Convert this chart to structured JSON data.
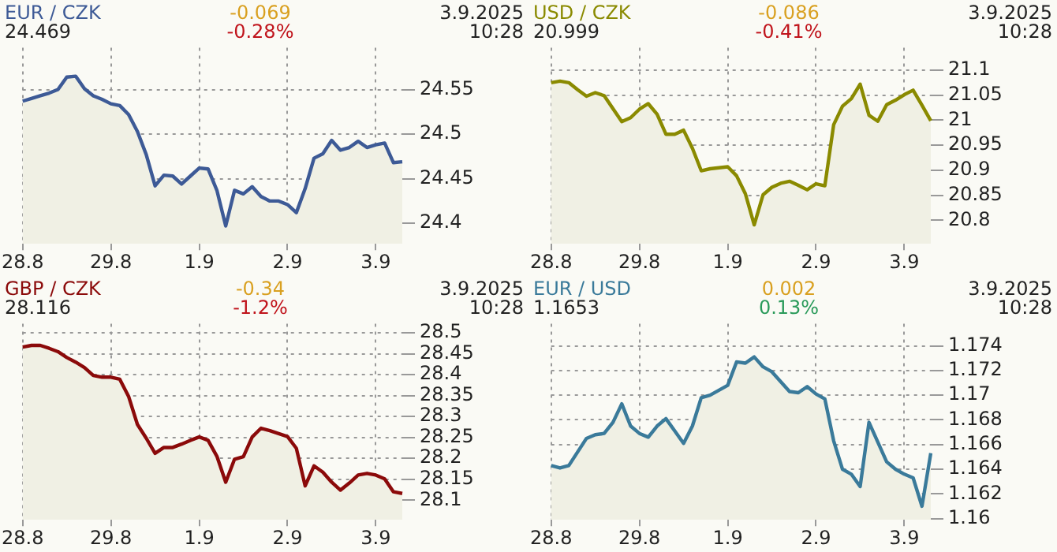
{
  "chart_data": [
    {
      "type": "area",
      "title": "EUR / CZK",
      "subtitle": "24.469",
      "annotations": [
        "-0.069",
        "-0.28%",
        "3.9.2025",
        "10:28"
      ],
      "grid": true,
      "legend": false,
      "categories": [
        "28.8",
        null,
        null,
        null,
        null,
        null,
        null,
        null,
        null,
        null,
        "29.8",
        null,
        null,
        null,
        null,
        null,
        null,
        null,
        null,
        null,
        "1.9",
        null,
        null,
        null,
        null,
        null,
        null,
        null,
        null,
        null,
        "2.9",
        null,
        null,
        null,
        null,
        null,
        null,
        null,
        null,
        null,
        "3.9",
        null,
        null,
        null
      ],
      "ylim": [
        24.377,
        24.597
      ],
      "yticks": [
        24.4,
        24.45,
        24.5,
        24.55
      ],
      "series": [
        {
          "color": "#3d5a96",
          "values": [
            24.537,
            24.54,
            24.543,
            24.546,
            24.55,
            24.564,
            24.565,
            24.551,
            24.543,
            24.539,
            24.534,
            24.532,
            24.522,
            24.503,
            24.477,
            24.442,
            24.454,
            24.453,
            24.444,
            24.453,
            24.462,
            24.461,
            24.437,
            24.397,
            24.437,
            24.433,
            24.441,
            24.43,
            24.425,
            24.425,
            24.421,
            24.412,
            24.439,
            24.473,
            24.478,
            24.493,
            24.482,
            24.485,
            24.492,
            24.485,
            24.488,
            24.49,
            24.468,
            24.469
          ]
        }
      ]
    },
    {
      "type": "area",
      "title": "USD / CZK",
      "subtitle": "20.999",
      "annotations": [
        "-0.086",
        "-0.41%",
        "3.9.2025",
        "10:28"
      ],
      "grid": true,
      "legend": false,
      "categories": [
        "28.8",
        null,
        null,
        null,
        null,
        null,
        null,
        null,
        null,
        null,
        "29.8",
        null,
        null,
        null,
        null,
        null,
        null,
        null,
        null,
        null,
        "1.9",
        null,
        null,
        null,
        null,
        null,
        null,
        null,
        null,
        null,
        "2.9",
        null,
        null,
        null,
        null,
        null,
        null,
        null,
        null,
        null,
        "3.9",
        null,
        null,
        null
      ],
      "ylim": [
        20.753,
        21.145
      ],
      "yticks": [
        20.8,
        20.85,
        20.9,
        20.95,
        21,
        21.05,
        21.1
      ],
      "series": [
        {
          "color": "#8a8a00",
          "values": [
            21.075,
            21.078,
            21.075,
            21.061,
            21.048,
            21.055,
            21.049,
            21.023,
            20.997,
            21.005,
            21.022,
            21.033,
            21.012,
            20.972,
            20.972,
            20.98,
            20.944,
            20.899,
            20.903,
            20.905,
            20.907,
            20.889,
            20.853,
            20.791,
            20.851,
            20.866,
            20.874,
            20.878,
            20.87,
            20.861,
            20.873,
            20.869,
            20.991,
            21.028,
            21.043,
            21.072,
            21.01,
            20.998,
            21.031,
            21.04,
            21.051,
            21.06,
            21.03,
            20.999
          ]
        }
      ]
    },
    {
      "type": "area",
      "title": "GBP / CZK",
      "subtitle": "28.116",
      "annotations": [
        "-0.34",
        "-1.2%",
        "3.9.2025",
        "10:28"
      ],
      "grid": true,
      "legend": false,
      "categories": [
        "28.8",
        null,
        null,
        null,
        null,
        null,
        null,
        null,
        null,
        null,
        "29.8",
        null,
        null,
        null,
        null,
        null,
        null,
        null,
        null,
        null,
        "1.9",
        null,
        null,
        null,
        null,
        null,
        null,
        null,
        null,
        null,
        "2.9",
        null,
        null,
        null,
        null,
        null,
        null,
        null,
        null,
        null,
        "3.9",
        null,
        null,
        null
      ],
      "ylim": [
        28.053,
        28.522
      ],
      "yticks": [
        28.1,
        28.15,
        28.2,
        28.25,
        28.3,
        28.35,
        28.4,
        28.45,
        28.5
      ],
      "series": [
        {
          "color": "#8b0a0a",
          "values": [
            28.466,
            28.47,
            28.47,
            28.463,
            28.455,
            28.441,
            28.43,
            28.417,
            28.398,
            28.394,
            28.394,
            28.389,
            28.348,
            28.281,
            28.248,
            28.212,
            28.226,
            28.226,
            28.234,
            28.243,
            28.251,
            28.243,
            28.205,
            28.143,
            28.198,
            28.204,
            28.251,
            28.272,
            28.266,
            28.259,
            28.252,
            28.224,
            28.134,
            28.182,
            28.167,
            28.143,
            28.124,
            28.141,
            28.16,
            28.164,
            28.16,
            28.151,
            28.12,
            28.116
          ]
        }
      ]
    },
    {
      "type": "area",
      "title": "EUR / USD",
      "subtitle": "1.1653",
      "annotations": [
        "0.002",
        "0.13%",
        "3.9.2025",
        "10:28"
      ],
      "grid": true,
      "legend": false,
      "categories": [
        "28.8",
        null,
        null,
        null,
        null,
        null,
        null,
        null,
        null,
        null,
        "29.8",
        null,
        null,
        null,
        null,
        null,
        null,
        null,
        null,
        null,
        "1.9",
        null,
        null,
        null,
        null,
        null,
        null,
        null,
        null,
        null,
        "2.9",
        null,
        null,
        null,
        null,
        null,
        null,
        null,
        null,
        null,
        "3.9",
        null,
        null,
        null
      ],
      "ylim": [
        1.1599,
        1.1758
      ],
      "yticks": [
        1.16,
        1.162,
        1.164,
        1.166,
        1.168,
        1.17,
        1.172,
        1.174
      ],
      "series": [
        {
          "color": "#3a7a9a",
          "values": [
            1.1643,
            1.1641,
            1.1643,
            1.1654,
            1.1665,
            1.1668,
            1.1669,
            1.1678,
            1.1693,
            1.1675,
            1.1669,
            1.1666,
            1.1675,
            1.1681,
            1.1671,
            1.1661,
            1.1675,
            1.1698,
            1.17,
            1.1704,
            1.1708,
            1.1727,
            1.1726,
            1.1731,
            1.1723,
            1.1719,
            1.1711,
            1.1703,
            1.1702,
            1.1707,
            1.1701,
            1.1697,
            1.1663,
            1.164,
            1.1636,
            1.1626,
            1.1678,
            1.1662,
            1.1646,
            1.164,
            1.1636,
            1.1633,
            1.161,
            1.1653
          ]
        }
      ]
    }
  ]
}
